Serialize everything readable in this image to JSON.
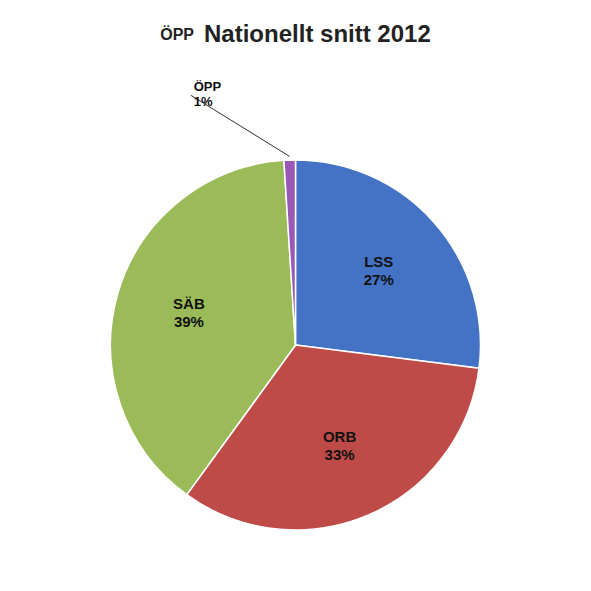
{
  "chart_data": {
    "type": "pie",
    "title": "Nationellt snitt 2012",
    "subtitle": "ÖPP",
    "categories": [
      "LSS",
      "ORB",
      "SÄB",
      "ÖPP"
    ],
    "values": [
      27,
      33,
      39,
      1
    ],
    "value_labels": [
      "27%",
      "33%",
      "39%",
      "1%"
    ],
    "colors": [
      "#4472C4",
      "#BE4B48",
      "#9BBB59",
      "#9B59B6"
    ],
    "data_labels": true
  }
}
